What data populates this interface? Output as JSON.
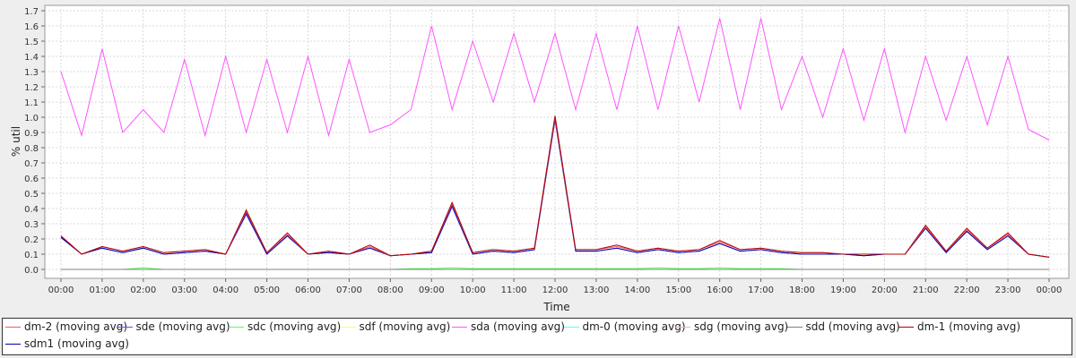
{
  "chart_data": {
    "type": "line",
    "xlabel": "Time",
    "ylabel": "% util",
    "ylim": [
      0,
      1.7
    ],
    "xlim": [
      "00:00",
      "24:00"
    ],
    "grid": true,
    "legend_position": "bottom",
    "x_tick_labels": [
      "00:00",
      "01:00",
      "02:00",
      "03:00",
      "04:00",
      "05:00",
      "06:00",
      "07:00",
      "08:00",
      "09:00",
      "10:00",
      "11:00",
      "12:00",
      "13:00",
      "14:00",
      "15:00",
      "16:00",
      "17:00",
      "18:00",
      "19:00",
      "20:00",
      "21:00",
      "22:00",
      "23:00",
      "00:00"
    ],
    "y_tick_labels": [
      "0.0",
      "0.1",
      "0.2",
      "0.3",
      "0.4",
      "0.5",
      "0.6",
      "0.7",
      "0.8",
      "0.9",
      "1.0",
      "1.1",
      "1.2",
      "1.3",
      "1.4",
      "1.5",
      "1.6",
      "1.7"
    ],
    "x": [
      "00:00",
      "00:30",
      "01:00",
      "01:30",
      "02:00",
      "02:30",
      "03:00",
      "03:30",
      "04:00",
      "04:30",
      "05:00",
      "05:30",
      "06:00",
      "06:30",
      "07:00",
      "07:30",
      "08:00",
      "08:30",
      "09:00",
      "09:30",
      "10:00",
      "10:30",
      "11:00",
      "11:30",
      "12:00",
      "12:30",
      "13:00",
      "13:30",
      "14:00",
      "14:30",
      "15:00",
      "15:30",
      "16:00",
      "16:30",
      "17:00",
      "17:30",
      "18:00",
      "18:30",
      "19:00",
      "19:30",
      "20:00",
      "20:30",
      "21:00",
      "21:30",
      "22:00",
      "22:30",
      "23:00",
      "23:30",
      "24:00"
    ],
    "series": [
      {
        "name": "dm-2 (moving avg)",
        "color": "#ff5555",
        "values": [
          0.22,
          0.1,
          0.15,
          0.12,
          0.15,
          0.11,
          0.12,
          0.13,
          0.1,
          0.38,
          0.11,
          0.23,
          0.1,
          0.12,
          0.1,
          0.15,
          0.09,
          0.1,
          0.12,
          0.43,
          0.11,
          0.13,
          0.12,
          0.14,
          1.0,
          0.13,
          0.13,
          0.15,
          0.12,
          0.14,
          0.12,
          0.13,
          0.18,
          0.13,
          0.14,
          0.12,
          0.11,
          0.11,
          0.1,
          0.1,
          0.1,
          0.1,
          0.28,
          0.12,
          0.26,
          0.14,
          0.23,
          0.1,
          0.08
        ]
      },
      {
        "name": "sde (moving avg)",
        "color": "#5555ff",
        "values": [
          0.21,
          0.1,
          0.14,
          0.11,
          0.14,
          0.1,
          0.11,
          0.12,
          0.1,
          0.36,
          0.1,
          0.22,
          0.1,
          0.11,
          0.1,
          0.14,
          0.09,
          0.1,
          0.11,
          0.41,
          0.1,
          0.12,
          0.11,
          0.13,
          0.98,
          0.12,
          0.12,
          0.14,
          0.11,
          0.13,
          0.11,
          0.12,
          0.17,
          0.12,
          0.13,
          0.11,
          0.1,
          0.1,
          0.1,
          0.09,
          0.1,
          0.1,
          0.27,
          0.11,
          0.25,
          0.13,
          0.22,
          0.1,
          0.08
        ]
      },
      {
        "name": "sdc (moving avg)",
        "color": "#55ff55",
        "values": [
          0.0,
          0.0,
          0.0,
          0.0,
          0.01,
          0.0,
          0.0,
          0.0,
          0.0,
          0.0,
          0.0,
          0.0,
          0.0,
          0.0,
          0.0,
          0.0,
          0.0,
          0.005,
          0.005,
          0.01,
          0.005,
          0.005,
          0.005,
          0.005,
          0.005,
          0.005,
          0.005,
          0.005,
          0.005,
          0.01,
          0.005,
          0.005,
          0.01,
          0.005,
          0.005,
          0.005,
          0.0,
          0.0,
          0.0,
          0.0,
          0.0,
          0.0,
          0.0,
          0.0,
          0.0,
          0.0,
          0.0,
          0.0,
          0.0
        ]
      },
      {
        "name": "sdf (moving avg)",
        "color": "#ffff55",
        "values": [
          0.0,
          0.0,
          0.0,
          0.0,
          0.0,
          0.0,
          0.0,
          0.0,
          0.0,
          0.0,
          0.0,
          0.0,
          0.0,
          0.0,
          0.0,
          0.0,
          0.0,
          0.0,
          0.0,
          0.0,
          0.0,
          0.0,
          0.0,
          0.0,
          0.0,
          0.0,
          0.0,
          0.0,
          0.0,
          0.0,
          0.0,
          0.0,
          0.0,
          0.0,
          0.0,
          0.0,
          0.0,
          0.0,
          0.0,
          0.0,
          0.0,
          0.0,
          0.0,
          0.0,
          0.0,
          0.0,
          0.0,
          0.0,
          0.0
        ]
      },
      {
        "name": "sda (moving avg)",
        "color": "#ff55ff",
        "values": [
          1.3,
          0.88,
          1.45,
          0.9,
          1.05,
          0.9,
          1.38,
          0.88,
          1.4,
          0.9,
          1.38,
          0.9,
          1.4,
          0.88,
          1.38,
          0.9,
          0.95,
          1.05,
          1.6,
          1.05,
          1.5,
          1.1,
          1.55,
          1.1,
          1.55,
          1.05,
          1.55,
          1.05,
          1.6,
          1.05,
          1.6,
          1.1,
          1.65,
          1.05,
          1.65,
          1.05,
          1.4,
          1.0,
          1.45,
          0.98,
          1.45,
          0.9,
          1.4,
          0.98,
          1.4,
          0.95,
          1.4,
          0.92,
          0.85
        ]
      },
      {
        "name": "dm-0 (moving avg)",
        "color": "#55ffff",
        "values": [
          0.0,
          0.0,
          0.0,
          0.0,
          0.0,
          0.0,
          0.0,
          0.0,
          0.0,
          0.0,
          0.0,
          0.0,
          0.0,
          0.0,
          0.0,
          0.0,
          0.0,
          0.0,
          0.0,
          0.0,
          0.0,
          0.0,
          0.0,
          0.0,
          0.0,
          0.0,
          0.0,
          0.0,
          0.0,
          0.0,
          0.0,
          0.0,
          0.0,
          0.0,
          0.0,
          0.0,
          0.0,
          0.0,
          0.0,
          0.0,
          0.0,
          0.0,
          0.0,
          0.0,
          0.0,
          0.0,
          0.0,
          0.0,
          0.0
        ]
      },
      {
        "name": "sdg (moving avg)",
        "color": "#ffaaaa",
        "values": [
          0.0,
          0.0,
          0.0,
          0.0,
          0.0,
          0.0,
          0.0,
          0.0,
          0.0,
          0.0,
          0.0,
          0.0,
          0.0,
          0.0,
          0.0,
          0.0,
          0.0,
          0.0,
          0.0,
          0.0,
          0.0,
          0.0,
          0.0,
          0.0,
          0.0,
          0.0,
          0.0,
          0.0,
          0.0,
          0.0,
          0.0,
          0.0,
          0.0,
          0.0,
          0.0,
          0.0,
          0.0,
          0.0,
          0.0,
          0.0,
          0.0,
          0.0,
          0.0,
          0.0,
          0.0,
          0.0,
          0.0,
          0.0,
          0.0
        ]
      },
      {
        "name": "sdd (moving avg)",
        "color": "#808080",
        "values": [
          0.0,
          0.0,
          0.0,
          0.0,
          0.0,
          0.0,
          0.0,
          0.0,
          0.0,
          0.0,
          0.0,
          0.0,
          0.0,
          0.0,
          0.0,
          0.0,
          0.0,
          0.0,
          0.0,
          0.0,
          0.0,
          0.0,
          0.0,
          0.0,
          0.0,
          0.0,
          0.0,
          0.0,
          0.0,
          0.0,
          0.0,
          0.0,
          0.0,
          0.0,
          0.0,
          0.0,
          0.0,
          0.0,
          0.0,
          0.0,
          0.0,
          0.0,
          0.0,
          0.0,
          0.0,
          0.0,
          0.0,
          0.0,
          0.0
        ]
      },
      {
        "name": "dm-1 (moving avg)",
        "color": "#b00000",
        "values": [
          0.22,
          0.1,
          0.15,
          0.12,
          0.15,
          0.11,
          0.12,
          0.13,
          0.1,
          0.39,
          0.11,
          0.24,
          0.1,
          0.12,
          0.1,
          0.16,
          0.09,
          0.1,
          0.12,
          0.44,
          0.11,
          0.13,
          0.12,
          0.14,
          1.01,
          0.13,
          0.13,
          0.16,
          0.12,
          0.14,
          0.12,
          0.13,
          0.19,
          0.13,
          0.14,
          0.12,
          0.11,
          0.11,
          0.1,
          0.1,
          0.1,
          0.1,
          0.29,
          0.12,
          0.27,
          0.14,
          0.24,
          0.1,
          0.08
        ]
      },
      {
        "name": "sdm1 (moving avg)",
        "color": "#0000aa",
        "values": [
          0.21,
          0.1,
          0.14,
          0.11,
          0.14,
          0.1,
          0.11,
          0.12,
          0.1,
          0.37,
          0.1,
          0.22,
          0.1,
          0.11,
          0.1,
          0.14,
          0.09,
          0.1,
          0.11,
          0.42,
          0.1,
          0.12,
          0.11,
          0.13,
          0.99,
          0.12,
          0.12,
          0.14,
          0.11,
          0.13,
          0.11,
          0.12,
          0.17,
          0.12,
          0.13,
          0.11,
          0.1,
          0.1,
          0.1,
          0.09,
          0.1,
          0.1,
          0.27,
          0.11,
          0.25,
          0.13,
          0.22,
          0.1,
          0.08
        ]
      }
    ]
  }
}
